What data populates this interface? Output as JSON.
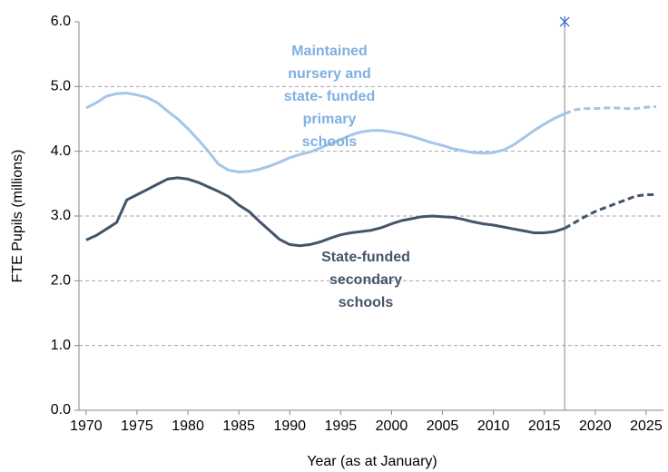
{
  "chart_data": {
    "type": "line",
    "y_label": "FTE Pupils (millions)",
    "x_label": "Year (as at January)",
    "x": [
      1970,
      1971,
      1972,
      1973,
      1974,
      1975,
      1976,
      1977,
      1978,
      1979,
      1980,
      1981,
      1982,
      1983,
      1984,
      1985,
      1986,
      1987,
      1988,
      1989,
      1990,
      1991,
      1992,
      1993,
      1994,
      1995,
      1996,
      1997,
      1998,
      1999,
      2000,
      2001,
      2002,
      2003,
      2004,
      2005,
      2006,
      2007,
      2008,
      2009,
      2010,
      2011,
      2012,
      2013,
      2014,
      2015,
      2016,
      2017,
      2018,
      2019,
      2020,
      2021,
      2022,
      2023,
      2024,
      2025,
      2026
    ],
    "series": [
      {
        "color": "#a4c6e8",
        "style": "solid",
        "values": [
          4.67,
          4.75,
          4.85,
          4.89,
          4.9,
          4.87,
          4.83,
          4.75,
          4.62,
          4.5,
          4.35,
          4.18,
          4.0,
          3.8,
          3.71,
          3.68,
          3.69,
          3.72,
          3.77,
          3.83,
          3.9,
          3.95,
          3.99,
          4.05,
          4.12,
          4.18,
          4.25,
          4.3,
          4.32,
          4.32,
          4.3,
          4.27,
          4.23,
          4.18,
          4.13,
          4.09,
          4.04,
          4.01,
          3.98,
          3.97,
          3.98,
          4.02,
          4.1,
          4.21,
          4.32,
          4.42,
          4.51,
          4.58,
          null,
          null,
          null,
          null,
          null,
          null,
          null,
          null,
          null
        ]
      },
      {
        "color": "#a4c6e8",
        "style": "dashed",
        "values": [
          null,
          null,
          null,
          null,
          null,
          null,
          null,
          null,
          null,
          null,
          null,
          null,
          null,
          null,
          null,
          null,
          null,
          null,
          null,
          null,
          null,
          null,
          null,
          null,
          null,
          null,
          null,
          null,
          null,
          null,
          null,
          null,
          null,
          null,
          null,
          null,
          null,
          null,
          null,
          null,
          null,
          null,
          null,
          null,
          null,
          null,
          null,
          4.58,
          4.64,
          4.66,
          4.66,
          4.67,
          4.67,
          4.66,
          4.66,
          4.68,
          4.69
        ]
      },
      {
        "color": "#44546a",
        "style": "solid",
        "values": [
          2.63,
          2.7,
          2.8,
          2.9,
          3.25,
          3.33,
          3.41,
          3.49,
          3.57,
          3.59,
          3.57,
          3.52,
          3.45,
          3.38,
          3.3,
          3.17,
          3.07,
          2.92,
          2.78,
          2.64,
          2.56,
          2.54,
          2.56,
          2.6,
          2.66,
          2.71,
          2.74,
          2.76,
          2.78,
          2.82,
          2.88,
          2.93,
          2.96,
          2.99,
          3.0,
          2.99,
          2.98,
          2.95,
          2.91,
          2.88,
          2.86,
          2.83,
          2.8,
          2.77,
          2.74,
          2.74,
          2.76,
          2.81,
          null,
          null,
          null,
          null,
          null,
          null,
          null,
          null,
          null
        ]
      },
      {
        "color": "#44546a",
        "style": "dashed",
        "values": [
          null,
          null,
          null,
          null,
          null,
          null,
          null,
          null,
          null,
          null,
          null,
          null,
          null,
          null,
          null,
          null,
          null,
          null,
          null,
          null,
          null,
          null,
          null,
          null,
          null,
          null,
          null,
          null,
          null,
          null,
          null,
          null,
          null,
          null,
          null,
          null,
          null,
          null,
          null,
          null,
          null,
          null,
          null,
          null,
          null,
          null,
          null,
          2.81,
          2.9,
          2.99,
          3.07,
          3.13,
          3.19,
          3.25,
          3.31,
          3.33,
          3.33
        ]
      }
    ],
    "annotations": [
      {
        "lines": [
          "Maintained",
          "nursery and",
          "state- funded",
          "primary",
          "schools"
        ],
        "color": "#7eb0e0"
      },
      {
        "lines": [
          "State-funded",
          "secondary",
          "schools"
        ],
        "color": "#44546a"
      }
    ],
    "marker": {
      "x": 2017,
      "y": 6,
      "color": "#4472c4"
    },
    "xlim": [
      1969.3,
      2026.7
    ],
    "ylim": [
      0,
      6
    ],
    "xticks": [
      1970,
      1975,
      1980,
      1985,
      1990,
      1995,
      2000,
      2005,
      2010,
      2015,
      2020,
      2025
    ],
    "yticks": [
      {
        "value": 0,
        "label": "0.0"
      },
      {
        "value": 1,
        "label": "1.0"
      },
      {
        "value": 2,
        "label": "2.0"
      },
      {
        "value": 3,
        "label": "3.0"
      },
      {
        "value": 4,
        "label": "4.0"
      },
      {
        "value": 5,
        "label": "5.0"
      },
      {
        "value": 6,
        "label": "6.0"
      }
    ],
    "grid": true
  }
}
